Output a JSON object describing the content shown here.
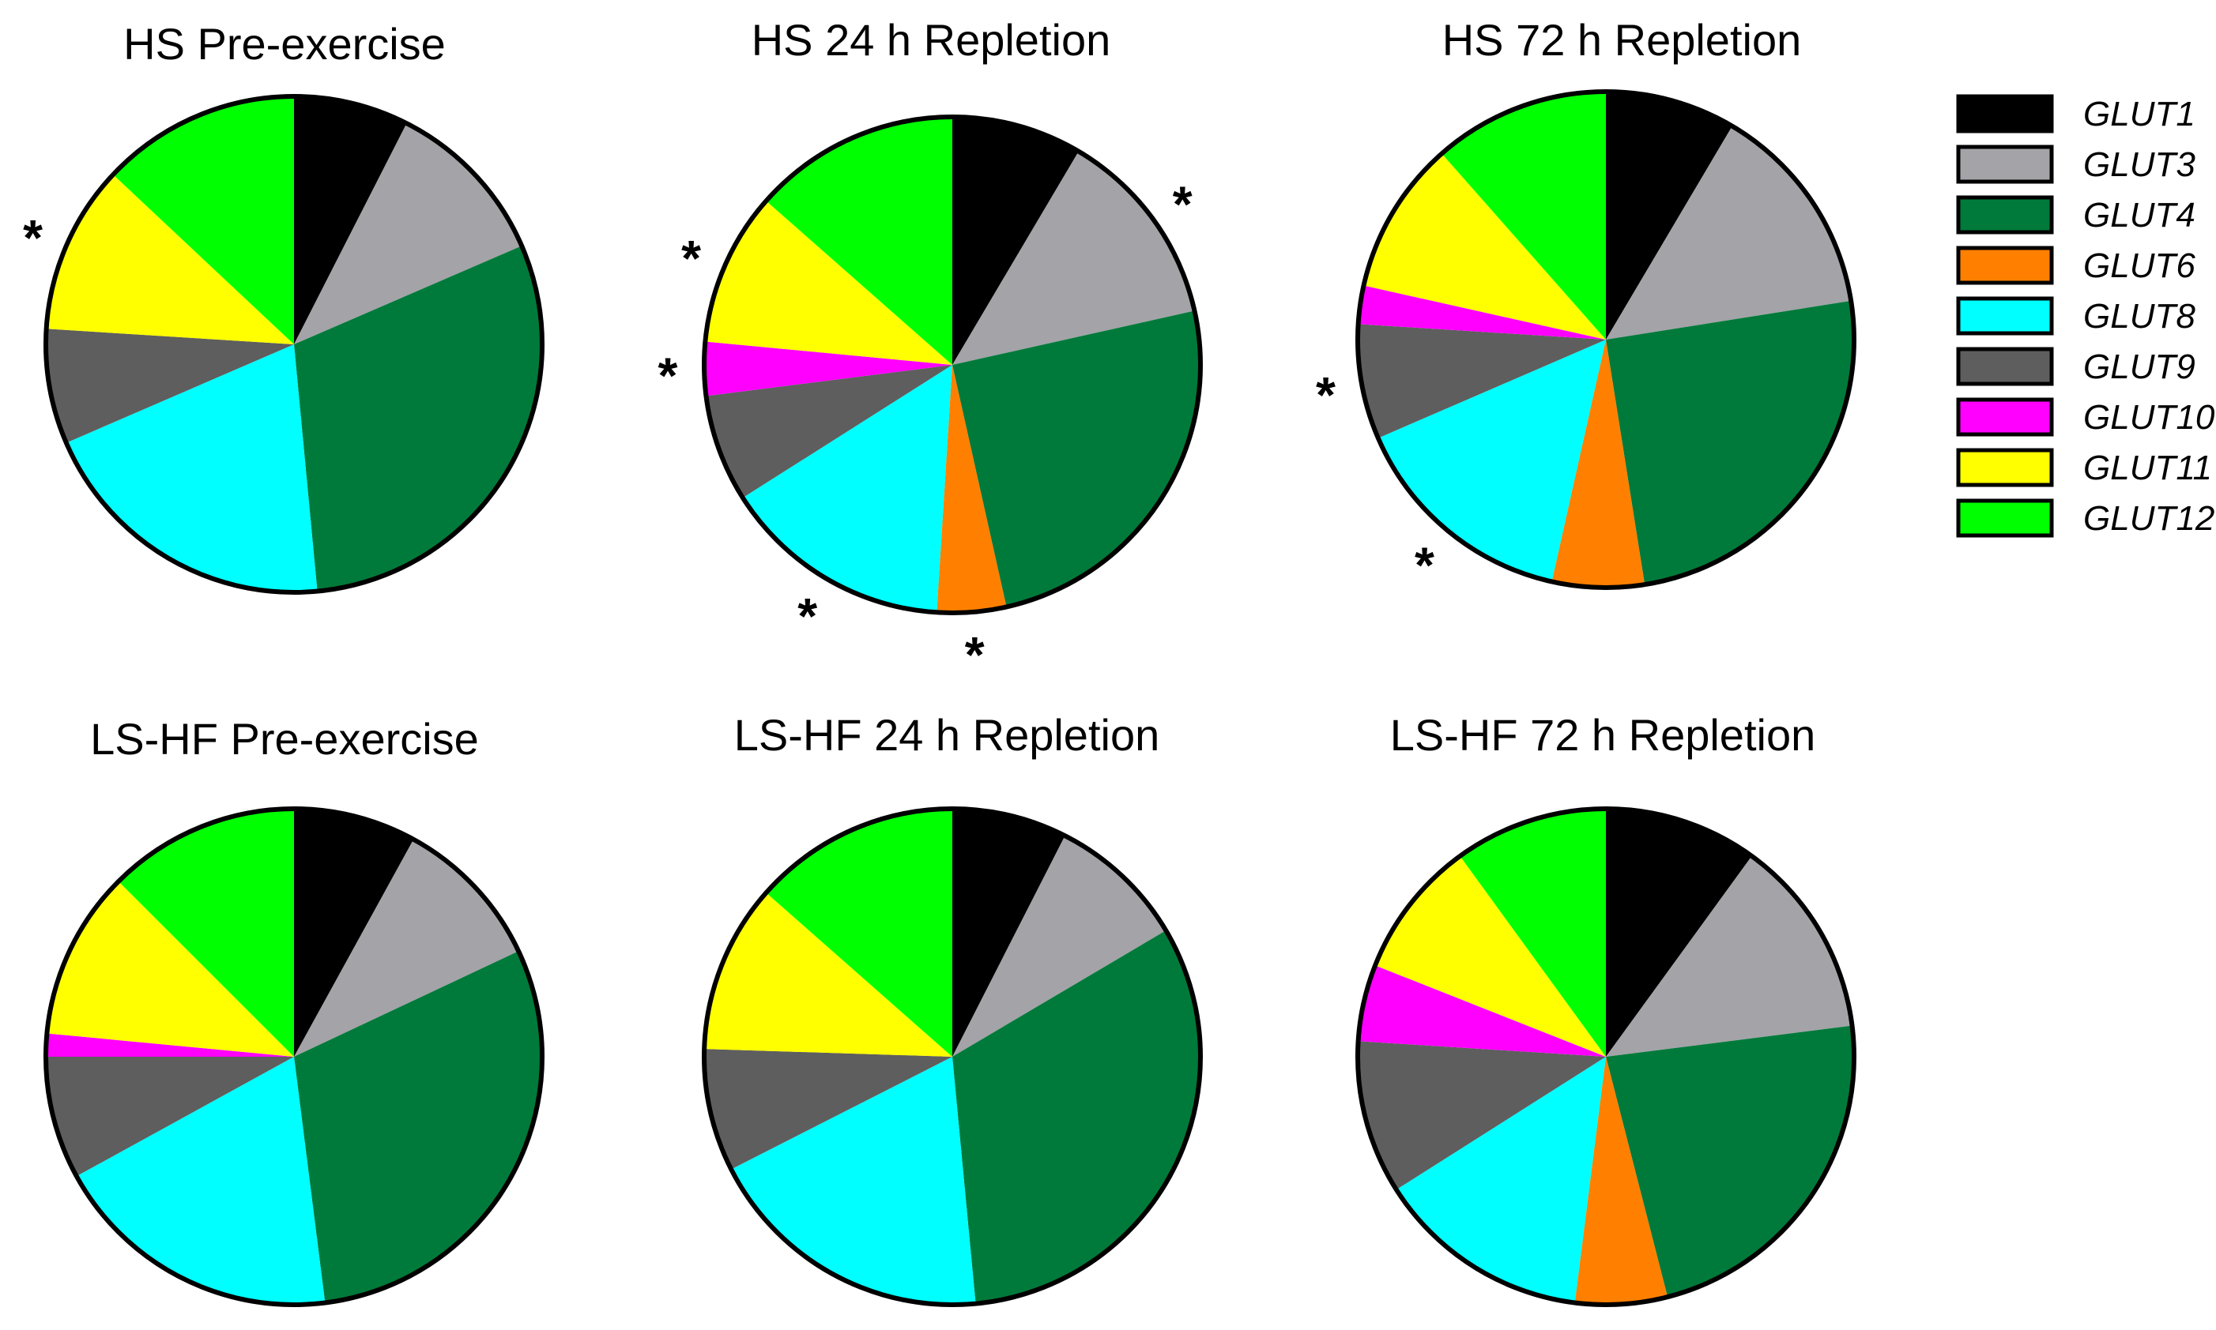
{
  "colors": {
    "GLUT1": "#000000",
    "GLUT3": "#a3a3a8",
    "GLUT4": "#007a3a",
    "GLUT6": "#ff8000",
    "GLUT8": "#00ffff",
    "GLUT9": "#5e5e5e",
    "GLUT10": "#ff00ff",
    "GLUT11": "#ffff00",
    "GLUT12": "#00ff00",
    "outline": "#000000"
  },
  "legend": {
    "entries": [
      "GLUT1",
      "GLUT3",
      "GLUT4",
      "GLUT6",
      "GLUT8",
      "GLUT9",
      "GLUT10",
      "GLUT11",
      "GLUT12"
    ]
  },
  "chart_data": [
    {
      "type": "pie",
      "title": "HS Pre-exercise",
      "labels": [
        "GLUT1",
        "GLUT3",
        "GLUT4",
        "GLUT6",
        "GLUT8",
        "GLUT9",
        "GLUT10",
        "GLUT11",
        "GLUT12"
      ],
      "values": [
        7.5,
        11,
        30,
        0,
        20,
        7.5,
        0,
        11,
        13
      ],
      "significant": [
        "GLUT11"
      ]
    },
    {
      "type": "pie",
      "title": "HS 24 h Repletion",
      "labels": [
        "GLUT1",
        "GLUT3",
        "GLUT4",
        "GLUT6",
        "GLUT8",
        "GLUT9",
        "GLUT10",
        "GLUT11",
        "GLUT12"
      ],
      "values": [
        8.5,
        13,
        25,
        4.5,
        15,
        7,
        3.5,
        10,
        13.5
      ],
      "significant": [
        "GLUT3",
        "GLUT6",
        "GLUT8",
        "GLUT10",
        "GLUT11"
      ]
    },
    {
      "type": "pie",
      "title": "HS 72 h Repletion",
      "labels": [
        "GLUT1",
        "GLUT3",
        "GLUT4",
        "GLUT6",
        "GLUT8",
        "GLUT9",
        "GLUT10",
        "GLUT11",
        "GLUT12"
      ],
      "values": [
        8.5,
        14,
        25,
        6,
        15,
        7.5,
        2.5,
        10,
        11.5
      ],
      "significant": [
        "GLUT8",
        "GLUT9"
      ]
    },
    {
      "type": "pie",
      "title": "LS-HF Pre-exercise",
      "labels": [
        "GLUT1",
        "GLUT3",
        "GLUT4",
        "GLUT6",
        "GLUT8",
        "GLUT9",
        "GLUT10",
        "GLUT11",
        "GLUT12"
      ],
      "values": [
        8,
        10,
        30,
        0,
        19,
        8,
        1.5,
        11,
        12.5
      ],
      "significant": []
    },
    {
      "type": "pie",
      "title": "LS-HF 24 h Repletion",
      "labels": [
        "GLUT1",
        "GLUT3",
        "GLUT4",
        "GLUT6",
        "GLUT8",
        "GLUT9",
        "GLUT10",
        "GLUT11",
        "GLUT12"
      ],
      "values": [
        7.5,
        9,
        32,
        0,
        19,
        8,
        0,
        11,
        13.5
      ],
      "significant": []
    },
    {
      "type": "pie",
      "title": "LS-HF 72 h Repletion",
      "labels": [
        "GLUT1",
        "GLUT3",
        "GLUT4",
        "GLUT6",
        "GLUT8",
        "GLUT9",
        "GLUT10",
        "GLUT11",
        "GLUT12"
      ],
      "values": [
        10,
        13,
        23,
        6,
        14,
        10,
        5,
        9,
        10
      ],
      "significant": []
    }
  ]
}
